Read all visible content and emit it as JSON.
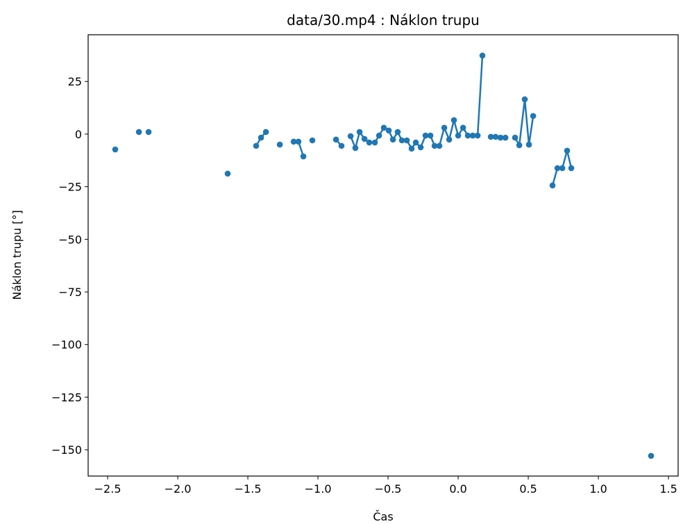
{
  "chart_data": {
    "type": "line",
    "title": "data/30.mp4 : Náklon trupu",
    "xlabel": "Čas",
    "ylabel": "Náklon trupu [°]",
    "color": "#1f77b4",
    "markers": true,
    "x": [
      -2.446,
      null,
      -2.277,
      null,
      -2.208,
      null,
      -1.644,
      null,
      -1.441,
      -1.406,
      -1.371,
      null,
      -1.272,
      null,
      -1.173,
      -1.139,
      -1.104,
      null,
      -1.04,
      null,
      -0.871,
      -0.832,
      null,
      -0.767,
      -0.733,
      -0.703,
      -0.668,
      -0.634,
      -0.594,
      -0.564,
      -0.53,
      -0.495,
      -0.465,
      -0.431,
      -0.401,
      -0.366,
      -0.332,
      -0.302,
      -0.267,
      -0.233,
      -0.198,
      -0.168,
      -0.134,
      -0.099,
      -0.064,
      -0.03,
      0.0,
      0.035,
      0.069,
      0.104,
      0.139,
      0.173,
      null,
      0.233,
      0.267,
      0.302,
      0.337,
      null,
      0.406,
      0.436,
      0.475,
      0.505,
      0.535,
      null,
      0.673,
      0.708,
      0.743,
      0.777,
      0.807,
      null,
      1.376
    ],
    "values": [
      -7.3,
      null,
      1.0,
      null,
      1.0,
      null,
      -18.8,
      null,
      -5.6,
      -1.7,
      1.0,
      null,
      -5.0,
      null,
      -3.6,
      -3.6,
      -10.6,
      null,
      -3.0,
      null,
      -2.6,
      -5.6,
      null,
      -1.0,
      -6.6,
      1.0,
      -2.3,
      -4.0,
      -4.0,
      -0.7,
      3.0,
      1.7,
      -2.6,
      1.0,
      -3.0,
      -3.0,
      -6.9,
      -4.0,
      -6.3,
      -0.7,
      -0.7,
      -5.6,
      -5.6,
      3.0,
      -2.6,
      6.6,
      -0.7,
      3.0,
      -0.7,
      -0.7,
      -0.7,
      37.3,
      null,
      -1.3,
      -1.3,
      -1.7,
      -1.7,
      null,
      -1.7,
      -5.3,
      16.5,
      -5.0,
      8.6,
      null,
      -24.4,
      -16.2,
      -16.2,
      -7.9,
      -16.2,
      null,
      -152.9
    ],
    "xlim": [
      -2.639,
      1.569
    ],
    "xticks": [
      {
        "value": -2.5,
        "label": "−2.5"
      },
      {
        "value": -2.0,
        "label": "−2.0"
      },
      {
        "value": -1.5,
        "label": "−1.5"
      },
      {
        "value": -1.0,
        "label": "−1.0"
      },
      {
        "value": -0.5,
        "label": "−0.5"
      },
      {
        "value": 0.0,
        "label": "0.0"
      },
      0.5,
      {
        "value": 1.0,
        "label": "1.0"
      },
      1.5
    ],
    "ylim": [
      -162.5,
      47.2
    ],
    "yticks": [
      {
        "value": -150,
        "label": "−150"
      },
      {
        "value": -125,
        "label": "−125"
      },
      {
        "value": -100,
        "label": "−100"
      },
      {
        "value": -75,
        "label": "−75"
      },
      {
        "value": -50,
        "label": "−50"
      },
      {
        "value": -25,
        "label": "−25"
      },
      0,
      25
    ]
  }
}
